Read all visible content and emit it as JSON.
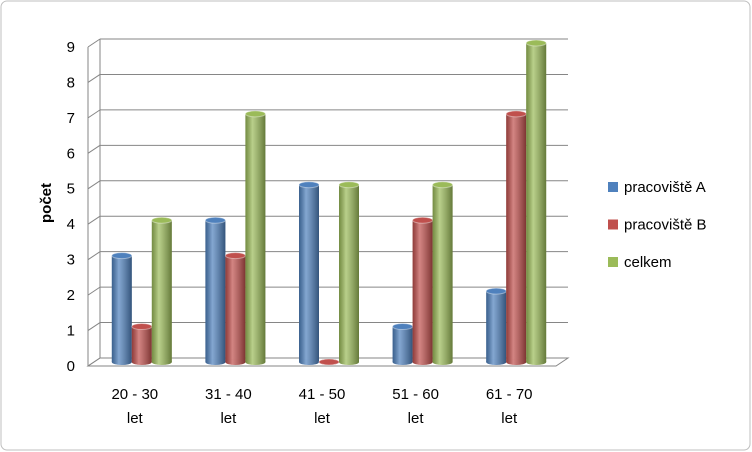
{
  "chart_data": {
    "type": "bar",
    "y_label": "počet",
    "categories": [
      "20 - 30 let",
      "31 - 40 let",
      "41 - 50 let",
      "51 - 60 let",
      "61 - 70 let"
    ],
    "series": [
      {
        "name": "pracoviště A",
        "color": "#4f81bd",
        "values": [
          3,
          4,
          5,
          1,
          2
        ]
      },
      {
        "name": "pracoviště B",
        "color": "#c0504d",
        "values": [
          1,
          3,
          0,
          4,
          7
        ]
      },
      {
        "name": "celkem",
        "color": "#9bbb59",
        "values": [
          4,
          7,
          5,
          5,
          9
        ]
      }
    ],
    "ylim": [
      0,
      9
    ],
    "yticks": [
      0,
      1,
      2,
      3,
      4,
      5,
      6,
      7,
      8,
      9
    ],
    "grid": true,
    "legend": "right"
  }
}
